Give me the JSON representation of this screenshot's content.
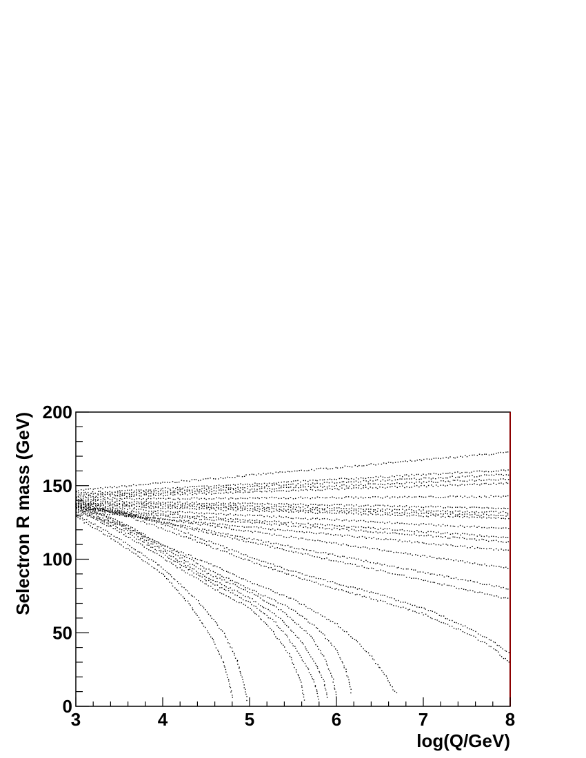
{
  "chart_data": {
    "type": "scatter",
    "title": "",
    "xlabel": "log(Q/GeV)",
    "ylabel": "Selectron R mass (GeV)",
    "xlim": [
      3,
      8
    ],
    "ylim": [
      0,
      200
    ],
    "x_ticks": [
      "3",
      "4",
      "5",
      "6",
      "7",
      "8"
    ],
    "y_ticks": [
      "0",
      "50",
      "100",
      "150",
      "200"
    ],
    "grid": false,
    "legend": "none",
    "marker_color": "#000000",
    "axis_color": "#000000",
    "right_axis_color": "#8b0000",
    "series": [
      {
        "x": [
          3,
          8
        ],
        "y": [
          147,
          173
        ]
      },
      {
        "x": [
          3,
          8
        ],
        "y": [
          145,
          161
        ]
      },
      {
        "x": [
          3,
          8
        ],
        "y": [
          144,
          158
        ]
      },
      {
        "x": [
          3,
          8
        ],
        "y": [
          143,
          155
        ]
      },
      {
        "x": [
          3,
          8
        ],
        "y": [
          142,
          152
        ]
      },
      {
        "x": [
          3,
          8
        ],
        "y": [
          141,
          143
        ]
      },
      {
        "x": [
          3,
          8
        ],
        "y": [
          140,
          135
        ]
      },
      {
        "x": [
          3,
          8
        ],
        "y": [
          139,
          132
        ]
      },
      {
        "x": [
          3,
          8
        ],
        "y": [
          138,
          130
        ]
      },
      {
        "x": [
          3,
          8
        ],
        "y": [
          137,
          128
        ]
      },
      {
        "x": [
          3,
          8
        ],
        "y": [
          136,
          121
        ]
      },
      {
        "x": [
          3,
          8
        ],
        "y": [
          135,
          115
        ]
      },
      {
        "x": [
          3,
          8
        ],
        "y": [
          134,
          112
        ]
      },
      {
        "x": [
          3,
          8
        ],
        "y": [
          133,
          106
        ]
      },
      {
        "x": [
          3,
          8
        ],
        "y": [
          136,
          94
        ]
      },
      {
        "x": [
          3,
          8
        ],
        "y": [
          137,
          80
        ]
      },
      {
        "x": [
          3,
          8
        ],
        "y": [
          138,
          73
        ]
      },
      {
        "x": [
          3,
          3.5,
          4,
          4.5,
          5,
          5.5,
          6,
          6.5,
          7,
          7.5,
          7.8,
          8
        ],
        "y": [
          140,
          133,
          124,
          113,
          102,
          92,
          84,
          76,
          67,
          54,
          44,
          36
        ]
      },
      {
        "x": [
          3,
          3.5,
          4,
          4.5,
          5,
          5.5,
          6,
          6.5,
          7,
          7.5,
          7.8,
          8
        ],
        "y": [
          139,
          131,
          121,
          110,
          99,
          89,
          80,
          72,
          63,
          50,
          40,
          29
        ]
      },
      {
        "x": [
          3,
          3.5,
          4,
          4.5,
          5,
          5.5,
          6,
          6.2,
          6.4,
          6.55,
          6.65,
          6.7
        ],
        "y": [
          132,
          124,
          110,
          98,
          85,
          73,
          56,
          46,
          34,
          22,
          12,
          8
        ]
      },
      {
        "x": [
          3,
          3.5,
          4,
          4.5,
          5,
          5.5,
          5.8,
          6.0,
          6.1,
          6.15,
          6.17
        ],
        "y": [
          138,
          126,
          110,
          94,
          80,
          66,
          52,
          38,
          25,
          15,
          8
        ]
      },
      {
        "x": [
          3,
          3.5,
          4,
          4.5,
          5,
          5.4,
          5.7,
          5.85,
          5.95,
          6.0
        ],
        "y": [
          137,
          125,
          108,
          91,
          78,
          64,
          48,
          34,
          20,
          5
        ]
      },
      {
        "x": [
          3,
          3.5,
          4,
          4.5,
          5,
          5.35,
          5.6,
          5.75,
          5.85,
          5.9
        ],
        "y": [
          136,
          123,
          106,
          88,
          74,
          60,
          44,
          30,
          17,
          5
        ]
      },
      {
        "x": [
          3,
          3.5,
          4,
          4.5,
          5,
          5.3,
          5.5,
          5.65,
          5.75,
          5.8
        ],
        "y": [
          135,
          121,
          104,
          86,
          71,
          57,
          42,
          28,
          15,
          4
        ]
      },
      {
        "x": [
          3,
          3.5,
          4,
          4.5,
          5,
          5.25,
          5.45,
          5.58,
          5.63
        ],
        "y": [
          134,
          119,
          101,
          83,
          67,
          52,
          36,
          18,
          3
        ]
      },
      {
        "x": [
          3,
          3.5,
          4,
          4.4,
          4.7,
          4.85,
          4.93,
          4.97
        ],
        "y": [
          131,
          114,
          94,
          72,
          50,
          32,
          15,
          3
        ]
      },
      {
        "x": [
          3,
          3.5,
          4,
          4.3,
          4.55,
          4.7,
          4.77,
          4.8
        ],
        "y": [
          129,
          111,
          90,
          70,
          48,
          30,
          14,
          5
        ]
      }
    ]
  }
}
